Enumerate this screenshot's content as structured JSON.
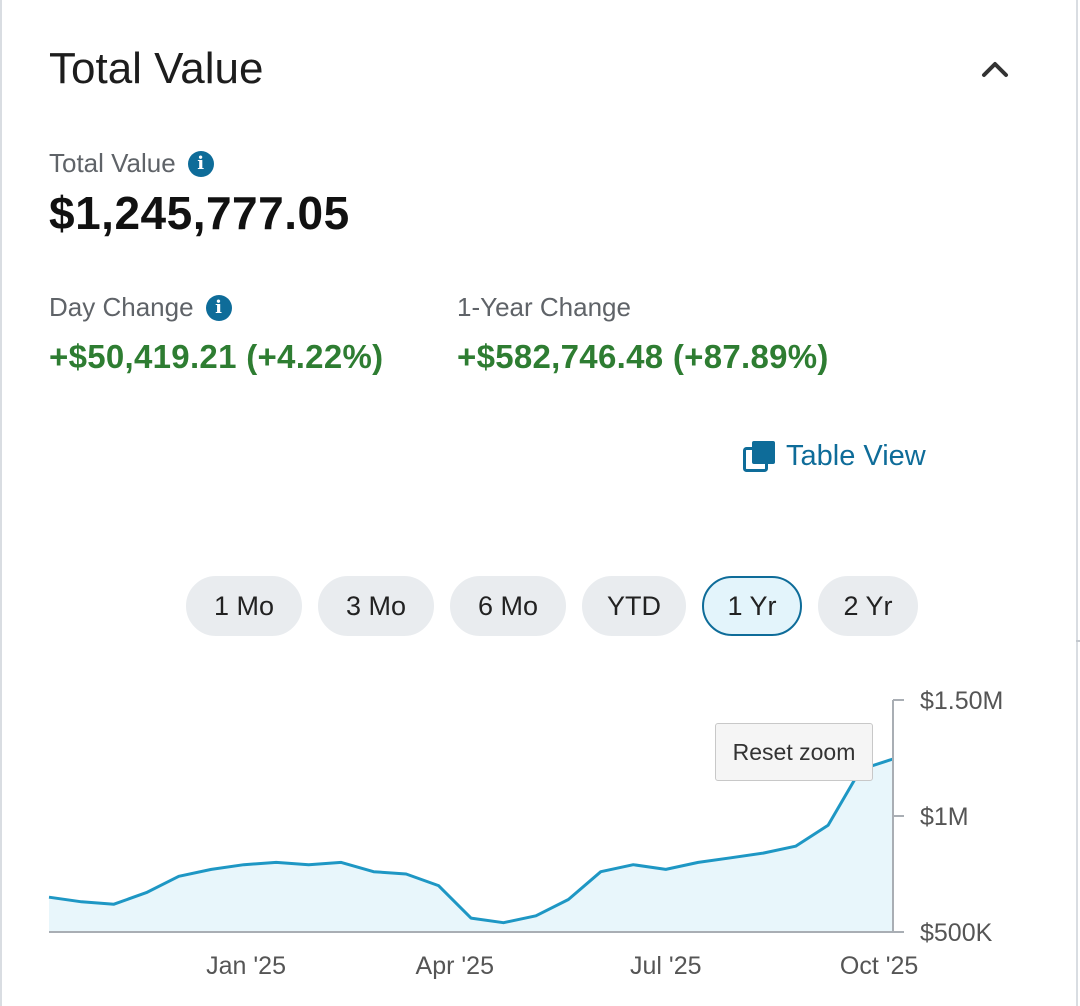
{
  "card": {
    "title": "Total Value",
    "collapse_icon": "chevron-up-icon"
  },
  "total": {
    "label": "Total Value",
    "amount": "$1,245,777.05",
    "info_icon": "info-icon"
  },
  "day_change": {
    "label": "Day Change",
    "value": "+$50,419.21 (+4.22%)"
  },
  "year_change": {
    "label": "1-Year Change",
    "value": "+$582,746.48 (+87.89%)"
  },
  "table_view": {
    "label": "Table View",
    "icon": "copy-icon"
  },
  "ranges": {
    "options": [
      "1 Mo",
      "3 Mo",
      "6 Mo",
      "YTD",
      "1 Yr",
      "2 Yr"
    ],
    "selected": "1 Yr"
  },
  "chart": {
    "reset_zoom": "Reset zoom"
  },
  "colors": {
    "accent": "#0e6c99",
    "positive": "#2e7d32",
    "line": "#1e97c4",
    "area_fill": "#e8f6fb"
  },
  "chart_data": {
    "type": "area",
    "x": [
      "2024-10-08",
      "2024-10-22",
      "2024-11-05",
      "2024-11-19",
      "2024-12-03",
      "2024-12-17",
      "2024-12-31",
      "2025-01-14",
      "2025-01-28",
      "2025-02-11",
      "2025-02-25",
      "2025-03-11",
      "2025-03-25",
      "2025-04-08",
      "2025-04-22",
      "2025-05-06",
      "2025-05-20",
      "2025-06-03",
      "2025-06-17",
      "2025-07-01",
      "2025-07-15",
      "2025-07-29",
      "2025-08-12",
      "2025-08-26",
      "2025-09-09",
      "2025-09-23",
      "2025-10-07"
    ],
    "values": [
      650000,
      630000,
      620000,
      670000,
      740000,
      770000,
      790000,
      800000,
      790000,
      800000,
      760000,
      750000,
      700000,
      560000,
      540000,
      570000,
      640000,
      760000,
      790000,
      770000,
      800000,
      820000,
      840000,
      870000,
      960000,
      1200000,
      1245777
    ],
    "yticks": [
      "$500K",
      "$1M",
      "$1.50M"
    ],
    "ytick_values": [
      500000,
      1000000,
      1500000
    ],
    "xticks": [
      "Jan '25",
      "Apr '25",
      "Jul '25",
      "Oct '25"
    ],
    "xtick_dates": [
      "2025-01-01",
      "2025-04-01",
      "2025-07-01",
      "2025-10-01"
    ],
    "ylim": [
      500000,
      1500000
    ],
    "grid": false,
    "legend": "none"
  }
}
